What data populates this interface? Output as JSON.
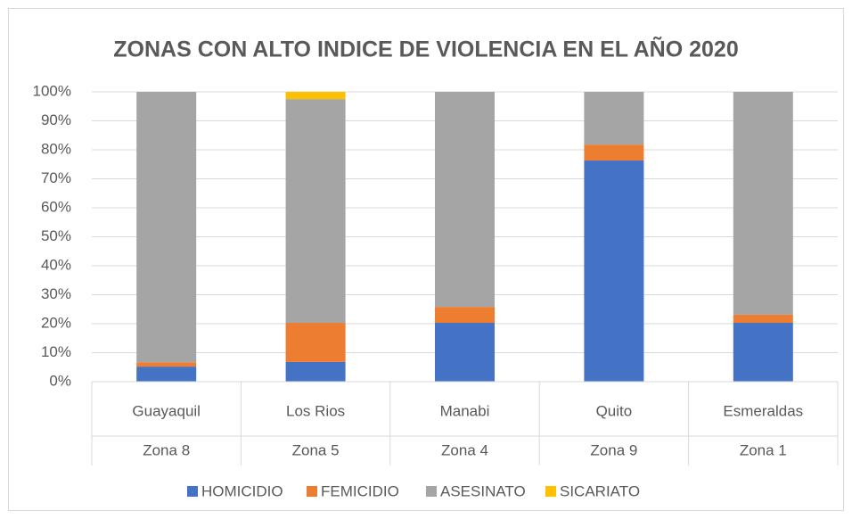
{
  "chart_data": {
    "type": "stacked_bar_100",
    "title": "ZONAS CON ALTO INDICE DE VIOLENCIA EN EL AÑO 2020",
    "categories": [
      "Guayaquil",
      "Los Rios",
      "Manabi",
      "Quito",
      "Esmeraldas"
    ],
    "category_groups": [
      "Zona 8",
      "Zona 5",
      "Zona 4",
      "Zona 9",
      "Zona 1"
    ],
    "series": [
      {
        "name": "HOMICIDIO",
        "color": "#4472c4",
        "values": [
          5.2,
          6.8,
          20.3,
          76.3,
          20.3
        ]
      },
      {
        "name": "FEMICIDIO",
        "color": "#ed7d31",
        "values": [
          1.5,
          13.5,
          5.5,
          5.5,
          2.8
        ]
      },
      {
        "name": "ASESINATO",
        "color": "#a5a5a5",
        "values": [
          93.3,
          77.2,
          74.2,
          18.2,
          76.9
        ]
      },
      {
        "name": "SICARIATO",
        "color": "#ffc000",
        "values": [
          0,
          2.5,
          0,
          0,
          0
        ]
      }
    ],
    "ylim": [
      0,
      100
    ],
    "yticks": [
      {
        "value": 0,
        "label": "0%"
      },
      {
        "value": 10,
        "label": "10%"
      },
      {
        "value": 20,
        "label": "20%"
      },
      {
        "value": 30,
        "label": "30%"
      },
      {
        "value": 40,
        "label": "40%"
      },
      {
        "value": 50,
        "label": "50%"
      },
      {
        "value": 60,
        "label": "60%"
      },
      {
        "value": 70,
        "label": "70%"
      },
      {
        "value": 80,
        "label": "80%"
      },
      {
        "value": 90,
        "label": "90%"
      },
      {
        "value": 100,
        "label": "100%"
      }
    ],
    "grid": true,
    "legend": "bottom"
  }
}
